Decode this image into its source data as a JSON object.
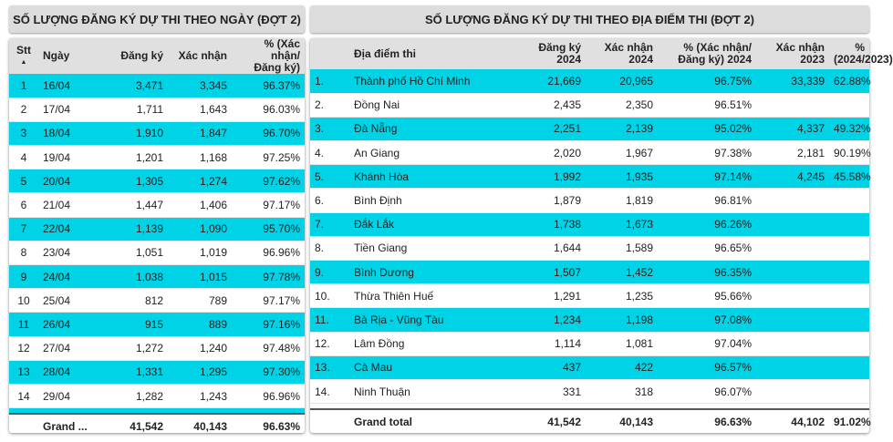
{
  "left": {
    "title": "SỐ LƯỢNG ĐĂNG KÝ DỰ THI THEO NGÀY (ĐỢT 2)",
    "headers": {
      "stt": "Stt",
      "ngay": "Ngày",
      "dangky": "Đăng ký",
      "xacnhan": "Xác nhận",
      "pct1": "% (Xác nhận/",
      "pct2": "Đăng ký)"
    },
    "sort_icon": "▲",
    "rows": [
      [
        "1",
        "16/04",
        "3,471",
        "3,345",
        "96.37%"
      ],
      [
        "2",
        "17/04",
        "1,711",
        "1,643",
        "96.03%"
      ],
      [
        "3",
        "18/04",
        "1,910",
        "1,847",
        "96.70%"
      ],
      [
        "4",
        "19/04",
        "1,201",
        "1,168",
        "97.25%"
      ],
      [
        "5",
        "20/04",
        "1,305",
        "1,274",
        "97.62%"
      ],
      [
        "6",
        "21/04",
        "1,447",
        "1,406",
        "97.17%"
      ],
      [
        "7",
        "22/04",
        "1,139",
        "1,090",
        "95.70%"
      ],
      [
        "8",
        "23/04",
        "1,051",
        "1,019",
        "96.96%"
      ],
      [
        "9",
        "24/04",
        "1,038",
        "1,015",
        "97.78%"
      ],
      [
        "10",
        "25/04",
        "812",
        "789",
        "97.17%"
      ],
      [
        "11",
        "26/04",
        "915",
        "889",
        "97.16%"
      ],
      [
        "12",
        "27/04",
        "1,272",
        "1,240",
        "97.48%"
      ],
      [
        "13",
        "28/04",
        "1,331",
        "1,295",
        "97.30%"
      ],
      [
        "14",
        "29/04",
        "1,282",
        "1,243",
        "96.96%"
      ]
    ],
    "total": {
      "label": "Grand ...",
      "dangky": "41,542",
      "xacnhan": "40,143",
      "pct": "96.63%"
    }
  },
  "right": {
    "title": "SỐ LƯỢNG ĐĂNG KÝ DỰ THI THEO ĐỊA ĐIỂM THI (ĐỢT 2)",
    "headers": {
      "place": "Địa điểm thi",
      "dk1": "Đăng ký",
      "dk2": "2024",
      "xn1": "Xác nhận",
      "xn2": "2024",
      "p1": "% (Xác nhận/",
      "p2": "Đăng ký) 2024",
      "x231": "Xác nhận",
      "x232": "2023",
      "r1": "%",
      "r2": "(2024/2023)"
    },
    "rows": [
      [
        "1.",
        "Thành phố Hồ Chí Minh",
        "21,669",
        "20,965",
        "96.75%",
        "33,339",
        "62.88%"
      ],
      [
        "2.",
        "Đồng Nai",
        "2,435",
        "2,350",
        "96.51%",
        "",
        ""
      ],
      [
        "3.",
        "Đà Nẵng",
        "2,251",
        "2,139",
        "95.02%",
        "4,337",
        "49.32%"
      ],
      [
        "4.",
        "An Giang",
        "2,020",
        "1,967",
        "97.38%",
        "2,181",
        "90.19%"
      ],
      [
        "5.",
        "Khánh Hòa",
        "1,992",
        "1,935",
        "97.14%",
        "4,245",
        "45.58%"
      ],
      [
        "6.",
        "Bình Định",
        "1,879",
        "1,819",
        "96.81%",
        "",
        ""
      ],
      [
        "7.",
        "Đắk Lắk",
        "1,738",
        "1,673",
        "96.26%",
        "",
        ""
      ],
      [
        "8.",
        "Tiền Giang",
        "1,644",
        "1,589",
        "96.65%",
        "",
        ""
      ],
      [
        "9.",
        "Bình Dương",
        "1,507",
        "1,452",
        "96.35%",
        "",
        ""
      ],
      [
        "10.",
        "Thừa Thiên Huế",
        "1,291",
        "1,235",
        "95.66%",
        "",
        ""
      ],
      [
        "11.",
        "Bà Rịa - Vũng Tàu",
        "1,234",
        "1,198",
        "97.08%",
        "",
        ""
      ],
      [
        "12.",
        "Lâm Đồng",
        "1,114",
        "1,081",
        "97.04%",
        "",
        ""
      ],
      [
        "13.",
        "Cà Mau",
        "437",
        "422",
        "96.57%",
        "",
        ""
      ],
      [
        "14.",
        "Ninh Thuận",
        "331",
        "318",
        "96.07%",
        "",
        ""
      ]
    ],
    "total": {
      "label": "Grand total",
      "dk": "41,542",
      "xn": "40,143",
      "pct": "96.63%",
      "xn23": "44,102",
      "ratio": "91.02%"
    }
  },
  "colors": {
    "highlight": "#00d3e5",
    "header": "#e0e0e0"
  }
}
